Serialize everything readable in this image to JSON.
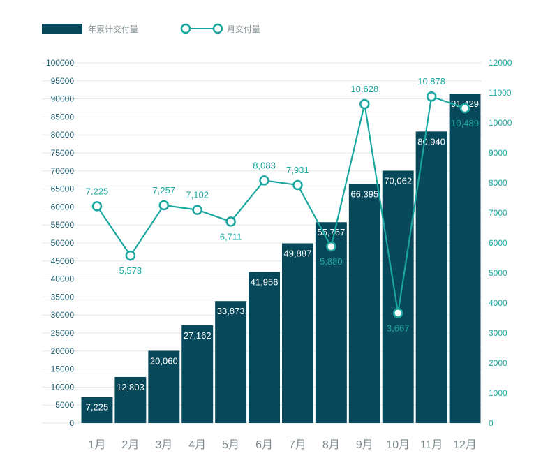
{
  "chart_data": {
    "type": "bar+line",
    "categories": [
      "1月",
      "2月",
      "3月",
      "4月",
      "5月",
      "6月",
      "7月",
      "8月",
      "9月",
      "10月",
      "11月",
      "12月"
    ],
    "series": [
      {
        "name": "年累计交付量",
        "type": "bar",
        "axis": "left",
        "values": [
          7225,
          12803,
          20060,
          27162,
          33873,
          41956,
          49887,
          55767,
          66395,
          70062,
          80940,
          91429
        ],
        "labels": [
          "7,225",
          "12,803",
          "20,060",
          "27,162",
          "33,873",
          "41,956",
          "49,887",
          "55,767",
          "66,395",
          "70,062",
          "80,940",
          "91,429"
        ]
      },
      {
        "name": "月交付量",
        "type": "line",
        "axis": "right",
        "values": [
          7225,
          5578,
          7257,
          7102,
          6711,
          8083,
          7931,
          5880,
          10628,
          3667,
          10878,
          10489
        ],
        "labels": [
          "7,225",
          "5,578",
          "7,257",
          "7,102",
          "6,711",
          "8,083",
          "7,931",
          "5,880",
          "10,628",
          "3,667",
          "10,878",
          "10,489"
        ]
      }
    ],
    "y_left": {
      "range": [
        0,
        100000
      ],
      "ticks": [
        "0",
        "5000",
        "10000",
        "15000",
        "20000",
        "25000",
        "30000",
        "35000",
        "40000",
        "45000",
        "50000",
        "55000",
        "60000",
        "65000",
        "70000",
        "75000",
        "80000",
        "85000",
        "90000",
        "95000",
        "100000"
      ]
    },
    "y_right": {
      "range": [
        0,
        12000
      ],
      "ticks": [
        "0",
        "1000",
        "2000",
        "3000",
        "4000",
        "5000",
        "6000",
        "7000",
        "8000",
        "9000",
        "10000",
        "11000",
        "12000"
      ]
    },
    "legend_position": "top-left",
    "grid": true,
    "colors": {
      "bar": "#07495a",
      "line": "#1aa7a0",
      "grid": "#e3e7e8",
      "left_axis_text": "#1f5e6e",
      "right_axis_text": "#1aa7a0",
      "x_axis_text": "#7d8b8f"
    }
  }
}
